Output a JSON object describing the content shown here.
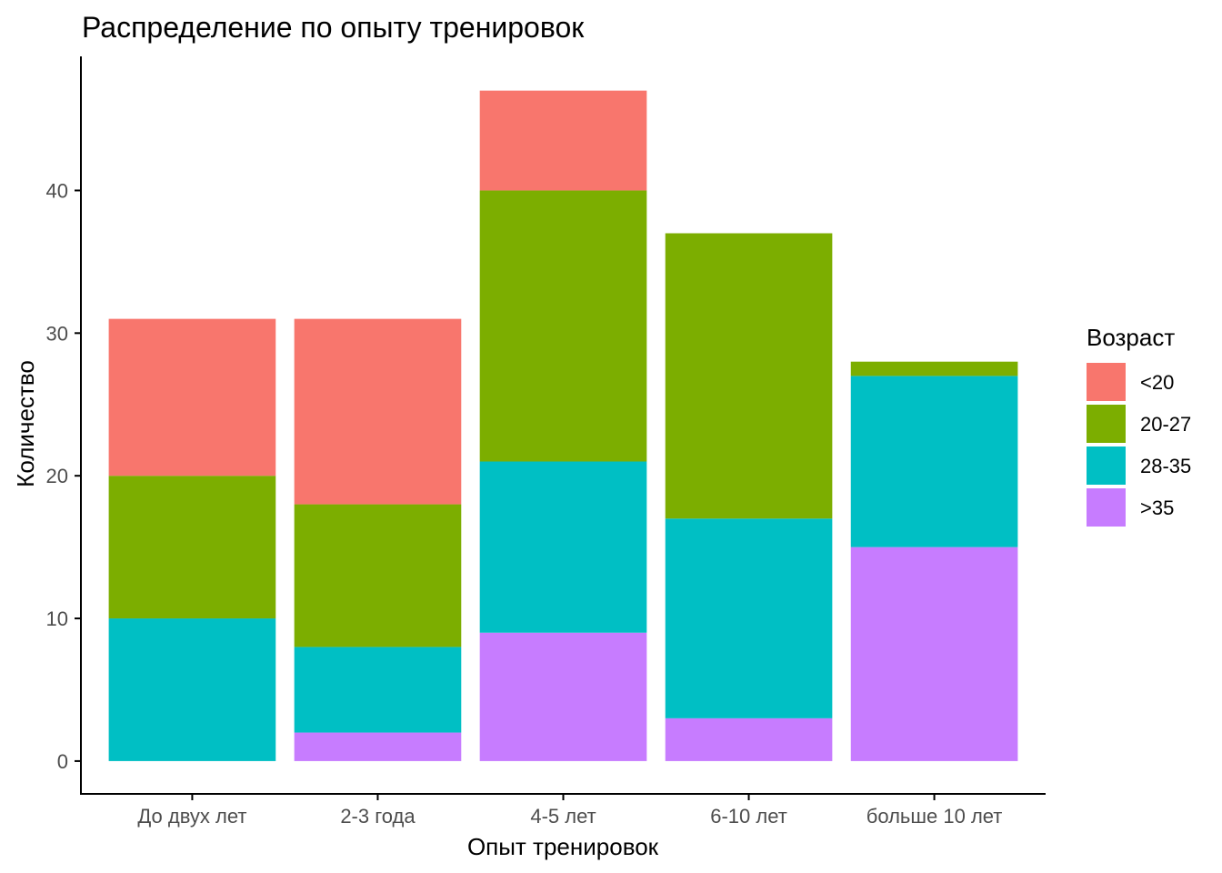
{
  "chart_data": {
    "type": "bar",
    "stacked": true,
    "title": "Распределение по опыту тренировок",
    "xlabel": "Опыт тренировок",
    "ylabel": "Количество",
    "categories": [
      "До двух лет",
      "2-3 года",
      "4-5 лет",
      "6-10 лет",
      "больше 10 лет"
    ],
    "series": [
      {
        "name": "<20",
        "color": "#F8766D",
        "values": [
          11,
          13,
          7,
          0,
          0
        ]
      },
      {
        "name": "20-27",
        "color": "#7CAE00",
        "values": [
          10,
          10,
          19,
          20,
          1
        ]
      },
      {
        "name": "28-35",
        "color": "#00BFC4",
        "values": [
          10,
          6,
          12,
          14,
          12
        ]
      },
      {
        "name": ">35",
        "color": "#C77CFF",
        "values": [
          0,
          2,
          9,
          3,
          15
        ]
      }
    ],
    "yticks": [
      0,
      10,
      20,
      30,
      40
    ],
    "ylim": [
      -2.3,
      49.4
    ],
    "legend": {
      "title": "Возраст",
      "position": "right"
    },
    "grid": false
  }
}
